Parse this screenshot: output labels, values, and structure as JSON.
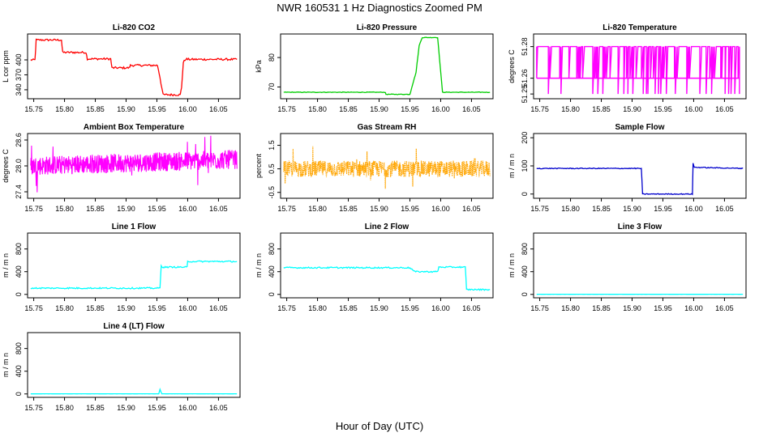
{
  "figure": {
    "title": "NWR  160531  1 Hz Diagnostics Zoomed PM",
    "xlabel": "Hour of Day (UTC)"
  },
  "chart_data": [
    {
      "id": "co2",
      "type": "line",
      "title": "Li-820 CO2",
      "ylabel": "L cor ppm",
      "color": "#ff0000",
      "xlim": [
        15.74,
        16.085
      ],
      "ylim": [
        322,
        452
      ],
      "yticks": [
        340,
        370,
        400
      ],
      "xticks": [
        "15.75",
        "15.80",
        "15.85",
        "15.90",
        "15.95",
        "16.00",
        "16.05"
      ],
      "x": [
        15.745,
        15.752,
        15.754,
        15.795,
        15.797,
        15.835,
        15.837,
        15.875,
        15.877,
        15.905,
        15.907,
        15.951,
        15.955,
        15.96,
        15.988,
        15.99,
        15.993,
        15.997,
        16.0,
        16.08
      ],
      "y": [
        400,
        400,
        440,
        440,
        415,
        415,
        402,
        402,
        384,
        384,
        389,
        389,
        365,
        330,
        330,
        345,
        395,
        402,
        401,
        401
      ],
      "noise": 2
    },
    {
      "id": "pressure",
      "type": "line",
      "title": "Li-820 Pressure",
      "ylabel": "kPa",
      "color": "#00cc00",
      "xlim": [
        15.74,
        16.085
      ],
      "ylim": [
        66,
        88
      ],
      "yticks": [
        70,
        80
      ],
      "xticks": [
        "15.75",
        "15.80",
        "15.85",
        "15.90",
        "15.95",
        "16.00",
        "16.05"
      ],
      "x": [
        15.745,
        15.91,
        15.911,
        15.95,
        15.96,
        15.965,
        15.97,
        15.995,
        16.003,
        16.08
      ],
      "y": [
        68.2,
        68.2,
        67.5,
        67.5,
        75,
        84,
        86.8,
        86.8,
        68.2,
        68.2
      ],
      "noise": 0.1
    },
    {
      "id": "temp",
      "type": "binary",
      "title": "Li-820 Temperature",
      "ylabel": "degrees C",
      "color": "#ff00ff",
      "xlim": [
        15.74,
        16.085
      ],
      "ylim": [
        51.247,
        51.288
      ],
      "yticks": [
        "51.25",
        "51.26",
        "51.28"
      ],
      "xticks": [
        "15.75",
        "15.80",
        "15.85",
        "15.90",
        "15.95",
        "16.00",
        "16.05"
      ],
      "x_start": 15.745,
      "x_end": 16.075,
      "levels": [
        51.25,
        51.26,
        51.28
      ]
    },
    {
      "id": "ambient",
      "type": "noise",
      "title": "Ambient Box Temperature",
      "ylabel": "degrees C",
      "color": "#ff00ff",
      "xlim": [
        15.74,
        16.085
      ],
      "ylim": [
        27.25,
        28.75
      ],
      "yticks": [
        "27.4",
        "28.0",
        "28.6"
      ],
      "xticks": [
        "15.75",
        "15.80",
        "15.85",
        "15.90",
        "15.95",
        "16.00",
        "16.05"
      ],
      "x_start": 15.745,
      "x_end": 16.08,
      "mean": 28.0,
      "spread": 0.22,
      "mean_end": 28.15
    },
    {
      "id": "rh",
      "type": "noise",
      "title": "Gas Stream RH",
      "ylabel": "percent",
      "color": "#ffa500",
      "xlim": [
        15.74,
        16.085
      ],
      "ylim": [
        -0.75,
        2.0
      ],
      "yticks": [
        "-0.5",
        "0.5",
        "1.5"
      ],
      "xticks": [
        "15.75",
        "15.80",
        "15.85",
        "15.90",
        "15.95",
        "16.00",
        "16.05"
      ],
      "x_start": 15.745,
      "x_end": 16.08,
      "mean": 0.5,
      "spread": 0.35,
      "mean_end": 0.5,
      "points": true
    },
    {
      "id": "sample",
      "type": "line",
      "title": "Sample Flow",
      "ylabel": "m / m n",
      "color": "#0000cc",
      "xlim": [
        15.74,
        16.085
      ],
      "ylim": [
        -15,
        215
      ],
      "yticks": [
        0,
        100,
        200
      ],
      "xticks": [
        "15.75",
        "15.80",
        "15.85",
        "15.90",
        "15.95",
        "16.00",
        "16.05"
      ],
      "x": [
        15.745,
        15.915,
        15.917,
        15.998,
        15.999,
        16.001,
        16.08
      ],
      "y": [
        91,
        91,
        0,
        0,
        110,
        95,
        91
      ],
      "noise": 1.5
    },
    {
      "id": "line1",
      "type": "line",
      "title": "Line 1 Flow",
      "ylabel": "m / m n",
      "color": "#00ffff",
      "xlim": [
        15.74,
        16.085
      ],
      "ylim": [
        -60,
        1080
      ],
      "yticks": [
        0,
        400,
        800
      ],
      "xticks": [
        "15.75",
        "15.80",
        "15.85",
        "15.90",
        "15.95",
        "16.00",
        "16.05"
      ],
      "x": [
        15.745,
        15.955,
        15.957,
        15.96,
        15.962,
        15.999,
        16.0,
        16.08
      ],
      "y": [
        110,
        110,
        500,
        480,
        480,
        480,
        580,
        580
      ],
      "noise": 12
    },
    {
      "id": "line2",
      "type": "line",
      "title": "Line 2 Flow",
      "ylabel": "m / m n",
      "color": "#00ffff",
      "xlim": [
        15.74,
        16.085
      ],
      "ylim": [
        -60,
        1080
      ],
      "yticks": [
        0,
        400,
        800
      ],
      "xticks": [
        "15.75",
        "15.80",
        "15.85",
        "15.90",
        "15.95",
        "16.00",
        "16.05"
      ],
      "x": [
        15.745,
        15.95,
        15.958,
        15.995,
        15.997,
        16.04,
        16.042,
        16.08
      ],
      "y": [
        470,
        470,
        400,
        400,
        480,
        480,
        85,
        85
      ],
      "noise": 12
    },
    {
      "id": "line3",
      "type": "line",
      "title": "Line 3 Flow",
      "ylabel": "m / m n",
      "color": "#00ffff",
      "xlim": [
        15.74,
        16.085
      ],
      "ylim": [
        -60,
        1080
      ],
      "yticks": [
        0,
        400,
        800
      ],
      "xticks": [
        "15.75",
        "15.80",
        "15.85",
        "15.90",
        "15.95",
        "16.00",
        "16.05"
      ],
      "x": [
        15.745,
        16.08
      ],
      "y": [
        2,
        2
      ],
      "noise": 1
    },
    {
      "id": "line4",
      "type": "line",
      "title": "Line 4 (LT) Flow",
      "ylabel": "m / m n",
      "color": "#00ffff",
      "xlim": [
        15.74,
        16.085
      ],
      "ylim": [
        -60,
        1080
      ],
      "yticks": [
        0,
        400,
        800
      ],
      "xticks": [
        "15.75",
        "15.80",
        "15.85",
        "15.90",
        "15.95",
        "16.00",
        "16.05"
      ],
      "x": [
        15.745,
        15.953,
        15.955,
        15.958,
        16.08
      ],
      "y": [
        2,
        2,
        80,
        2,
        2
      ],
      "noise": 1
    }
  ]
}
